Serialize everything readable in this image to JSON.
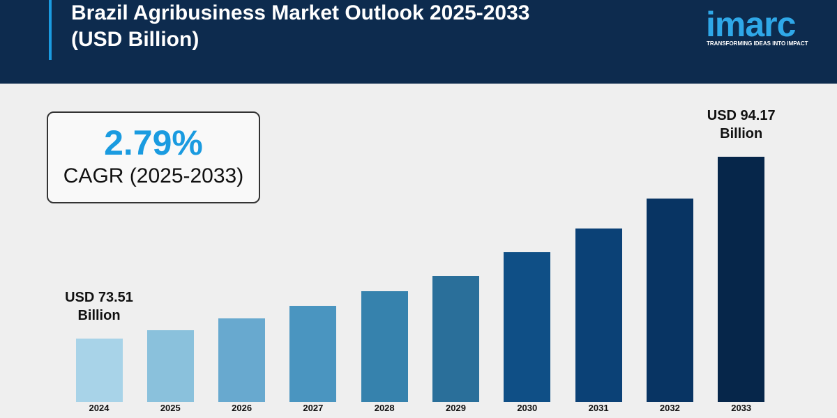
{
  "chart_data": {
    "type": "bar",
    "title": "Brazil Agribusiness Market Outlook 2025-2033 (USD Billion)",
    "logo": "imarc",
    "tagline": "TRANSFORMING IDEAS INTO IMPACT",
    "cagr_value": "2.79%",
    "cagr_label": "CAGR (2025-2033)",
    "categories": [
      "2024",
      "2025",
      "2026",
      "2027",
      "2028",
      "2029",
      "2030",
      "2031",
      "2032",
      "2033"
    ],
    "values": [
      73.51,
      74.46,
      75.81,
      77.24,
      78.9,
      80.64,
      83.33,
      86.02,
      89.43,
      94.17
    ],
    "value_labels": [
      "USD 73.51 Billion",
      null,
      null,
      null,
      null,
      null,
      null,
      null,
      null,
      "USD 94.17 Billion"
    ],
    "colors": [
      "#a8d3e8",
      "#8ac1dc",
      "#68a9cf",
      "#4a95c0",
      "#3682ad",
      "#2a6f9a",
      "#0f4f86",
      "#0b4176",
      "#083463",
      "#06264a"
    ],
    "ylim": [
      66.3,
      97
    ]
  }
}
